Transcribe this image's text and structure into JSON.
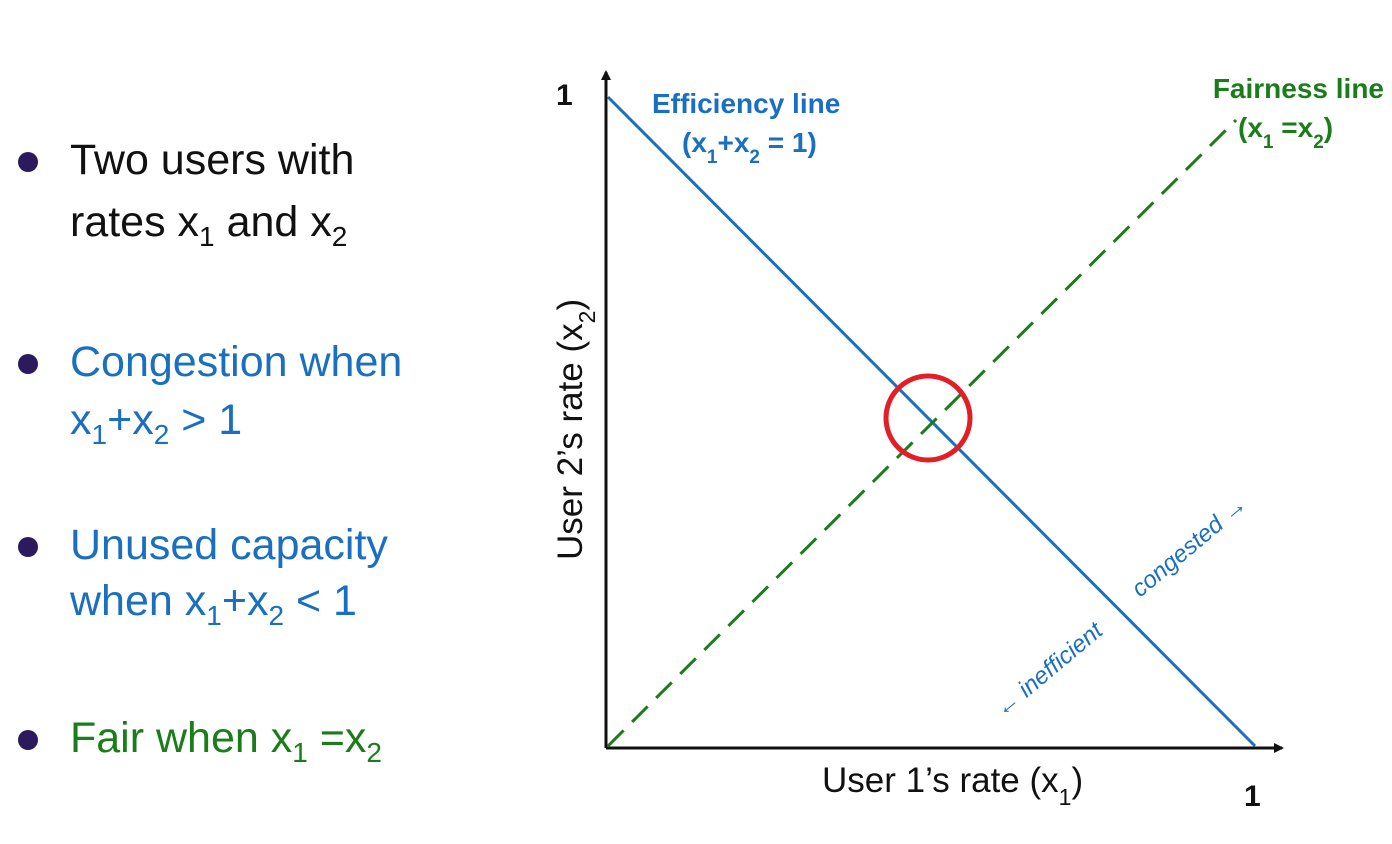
{
  "bullets": [
    {
      "line1": {
        "pre": "Two users with"
      },
      "line2": {
        "pre": "rates x",
        "sub1": "1",
        "mid": " and x",
        "sub2": "2",
        "post": ""
      }
    },
    {
      "line1": {
        "pre": "Congestion when"
      },
      "line2": {
        "pre": "x",
        "sub1": "1",
        "mid": "+x",
        "sub2": "2",
        "post": " > 1"
      }
    },
    {
      "line1": {
        "pre": "Unused capacity"
      },
      "line2": {
        "pre": "when x",
        "sub1": "1",
        "mid": "+x",
        "sub2": "2",
        "post": " < 1"
      }
    },
    {
      "line1": {
        "pre": "Fair when x",
        "sub1": "1",
        "mid": " =x",
        "sub2": "2",
        "post": ""
      }
    }
  ],
  "diagram": {
    "y_tick_top": "1",
    "x_tick_right": "1",
    "x_axis_label": {
      "pre": "User 1’s rate (x",
      "sub": "1",
      "post": ")"
    },
    "y_axis_label": {
      "pre": "User 2’s rate (x",
      "sub": "2",
      "post": ")"
    },
    "efficiency_title": "Efficiency line",
    "efficiency_eq": {
      "pre": "(x",
      "sub1": "1",
      "mid": "+x",
      "sub2": "2",
      "post": " = 1)"
    },
    "fairness_title": "Fairness line",
    "fairness_eq": {
      "pre": "(x",
      "sub1": "1",
      "mid": " =x",
      "sub2": "2",
      "post": ")"
    },
    "congested_label": "congested",
    "inefficient_label": "inefficient",
    "arrow_right": "→",
    "arrow_left": "←"
  },
  "colors": {
    "blue": "#1a6fc0",
    "green": "#1a7d1a",
    "red": "#e21f26",
    "axis": "#111111",
    "bullet_dot": "#2b1b5e"
  }
}
